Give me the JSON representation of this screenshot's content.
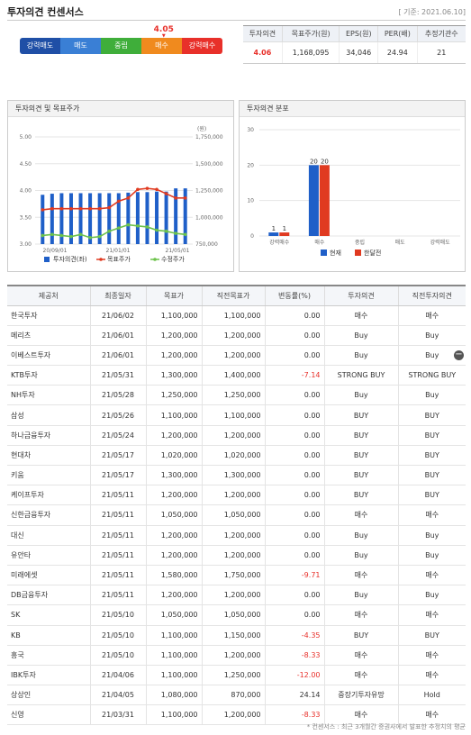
{
  "header": {
    "title": "투자의견 컨센서스",
    "base_date": "[ 기준: 2021.06.10]"
  },
  "gauge": {
    "value": "4.05",
    "level": 4.05,
    "segments": [
      {
        "label": "강력매도",
        "color": "#1f4fa6"
      },
      {
        "label": "매도",
        "color": "#3a7fd5"
      },
      {
        "label": "중립",
        "color": "#3fae3a"
      },
      {
        "label": "매수",
        "color": "#f08a1e"
      },
      {
        "label": "강력매수",
        "color": "#e8302a"
      }
    ]
  },
  "summary": {
    "headers": [
      "투자의견",
      "목표주가(원)",
      "EPS(원)",
      "PER(배)",
      "추정기관수"
    ],
    "values": [
      "4.06",
      "1,168,095",
      "34,046",
      "24.94",
      "21"
    ]
  },
  "panels": {
    "left_title": "투자의견 및 목표주가",
    "right_title": "투자의견 분포"
  },
  "chart_data": [
    {
      "type": "bar+line",
      "title": "투자의견 및 목표주가",
      "y_left_ticks": [
        "5.00",
        "4.50",
        "4.00",
        "3.50",
        "3.00"
      ],
      "y_left_range": [
        3.0,
        5.0
      ],
      "y_right_ticks": [
        "1,750,000",
        "1,500,000",
        "1,250,000",
        "1,000,000",
        "750,000"
      ],
      "y_right_range": [
        750000,
        1750000
      ],
      "y_right_unit": "(원)",
      "x_tick_labels": [
        "20/09/01",
        "21/01/01",
        "21/05/01"
      ],
      "series": [
        {
          "name": "투자의견(좌)",
          "color": "#1f5fc8",
          "type": "bar",
          "values": [
            3.92,
            3.94,
            3.95,
            3.95,
            3.95,
            3.95,
            3.95,
            3.95,
            3.95,
            3.96,
            3.97,
            3.97,
            3.98,
            3.98,
            4.04,
            4.04
          ]
        },
        {
          "name": "목표주가",
          "color": "#e03a20",
          "type": "line",
          "values": [
            1070000,
            1080000,
            1080000,
            1080000,
            1080000,
            1080000,
            1080000,
            1090000,
            1150000,
            1180000,
            1260000,
            1270000,
            1260000,
            1220000,
            1180000,
            1180000
          ]
        },
        {
          "name": "수정주가",
          "color": "#6cc24a",
          "type": "line",
          "values": [
            830000,
            840000,
            830000,
            820000,
            840000,
            810000,
            820000,
            870000,
            900000,
            930000,
            920000,
            910000,
            880000,
            870000,
            850000,
            840000
          ]
        }
      ]
    },
    {
      "type": "bar",
      "title": "투자의견 분포",
      "categories": [
        "강력매수",
        "매수",
        "중립",
        "매도",
        "강력매도"
      ],
      "ylim": [
        0,
        30
      ],
      "y_ticks": [
        "30",
        "20",
        "10",
        "0"
      ],
      "series": [
        {
          "name": "현재",
          "color": "#1f5fc8",
          "values": [
            1,
            20,
            0,
            0,
            0
          ]
        },
        {
          "name": "한달전",
          "color": "#e03a20",
          "values": [
            1,
            20,
            0,
            0,
            0
          ]
        }
      ]
    }
  ],
  "table": {
    "headers": [
      "제공처",
      "최종일자",
      "목표가",
      "직전목표가",
      "변동률(%)",
      "투자의견",
      "직전투자의견"
    ],
    "rows": [
      [
        "한국투자",
        "21/06/02",
        "1,100,000",
        "1,100,000",
        "0.00",
        "매수",
        "매수"
      ],
      [
        "메리츠",
        "21/06/01",
        "1,200,000",
        "1,200,000",
        "0.00",
        "Buy",
        "Buy"
      ],
      [
        "이베스트투자",
        "21/06/01",
        "1,200,000",
        "1,200,000",
        "0.00",
        "Buy",
        "Buy"
      ],
      [
        "KTB투자",
        "21/05/31",
        "1,300,000",
        "1,400,000",
        "-7.14",
        "STRONG BUY",
        "STRONG BUY"
      ],
      [
        "NH투자",
        "21/05/28",
        "1,250,000",
        "1,250,000",
        "0.00",
        "Buy",
        "Buy"
      ],
      [
        "삼성",
        "21/05/26",
        "1,100,000",
        "1,100,000",
        "0.00",
        "BUY",
        "BUY"
      ],
      [
        "하나금융투자",
        "21/05/24",
        "1,200,000",
        "1,200,000",
        "0.00",
        "BUY",
        "BUY"
      ],
      [
        "현대차",
        "21/05/17",
        "1,020,000",
        "1,020,000",
        "0.00",
        "BUY",
        "BUY"
      ],
      [
        "키움",
        "21/05/17",
        "1,300,000",
        "1,300,000",
        "0.00",
        "BUY",
        "BUY"
      ],
      [
        "케이프투자",
        "21/05/11",
        "1,200,000",
        "1,200,000",
        "0.00",
        "BUY",
        "BUY"
      ],
      [
        "신한금융투자",
        "21/05/11",
        "1,050,000",
        "1,050,000",
        "0.00",
        "매수",
        "매수"
      ],
      [
        "대신",
        "21/05/11",
        "1,200,000",
        "1,200,000",
        "0.00",
        "Buy",
        "Buy"
      ],
      [
        "유안타",
        "21/05/11",
        "1,200,000",
        "1,200,000",
        "0.00",
        "Buy",
        "Buy"
      ],
      [
        "미래에셋",
        "21/05/11",
        "1,580,000",
        "1,750,000",
        "-9.71",
        "매수",
        "매수"
      ],
      [
        "DB금융투자",
        "21/05/11",
        "1,200,000",
        "1,200,000",
        "0.00",
        "Buy",
        "Buy"
      ],
      [
        "SK",
        "21/05/10",
        "1,050,000",
        "1,050,000",
        "0.00",
        "매수",
        "매수"
      ],
      [
        "KB",
        "21/05/10",
        "1,100,000",
        "1,150,000",
        "-4.35",
        "BUY",
        "BUY"
      ],
      [
        "흥국",
        "21/05/10",
        "1,100,000",
        "1,200,000",
        "-8.33",
        "매수",
        "매수"
      ],
      [
        "IBK투자",
        "21/04/06",
        "1,100,000",
        "1,250,000",
        "-12.00",
        "매수",
        "매수"
      ],
      [
        "상상인",
        "21/04/05",
        "1,080,000",
        "870,000",
        "24.14",
        "중장기투자유망",
        "Hold"
      ],
      [
        "신영",
        "21/03/31",
        "1,100,000",
        "1,200,000",
        "-8.33",
        "매수",
        "매수"
      ]
    ]
  },
  "footnote": "* 컨센서스 : 최근 3개월간 증권사에서 발표한 추정치의 평균"
}
